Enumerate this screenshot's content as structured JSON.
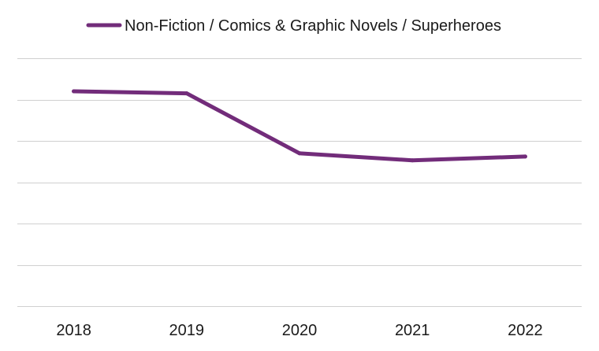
{
  "chart_data": {
    "type": "line",
    "title": "",
    "xlabel": "",
    "ylabel": "",
    "categories": [
      "2018",
      "2019",
      "2020",
      "2021",
      "2022"
    ],
    "series": [
      {
        "name": "Non-Fiction / Comics & Graphic Novels / Superheroes",
        "color": "#722c7a",
        "values": [
          5.2,
          5.15,
          3.7,
          3.53,
          3.62
        ]
      }
    ],
    "ylim": [
      0,
      6
    ],
    "y_gridlines": [
      0,
      1,
      2,
      3,
      4,
      5,
      6
    ],
    "grid": true,
    "y_tick_labels_shown": false,
    "legend": {
      "position": "top",
      "entries": [
        "Non-Fiction / Comics & Graphic Novels / Superheroes"
      ]
    }
  }
}
